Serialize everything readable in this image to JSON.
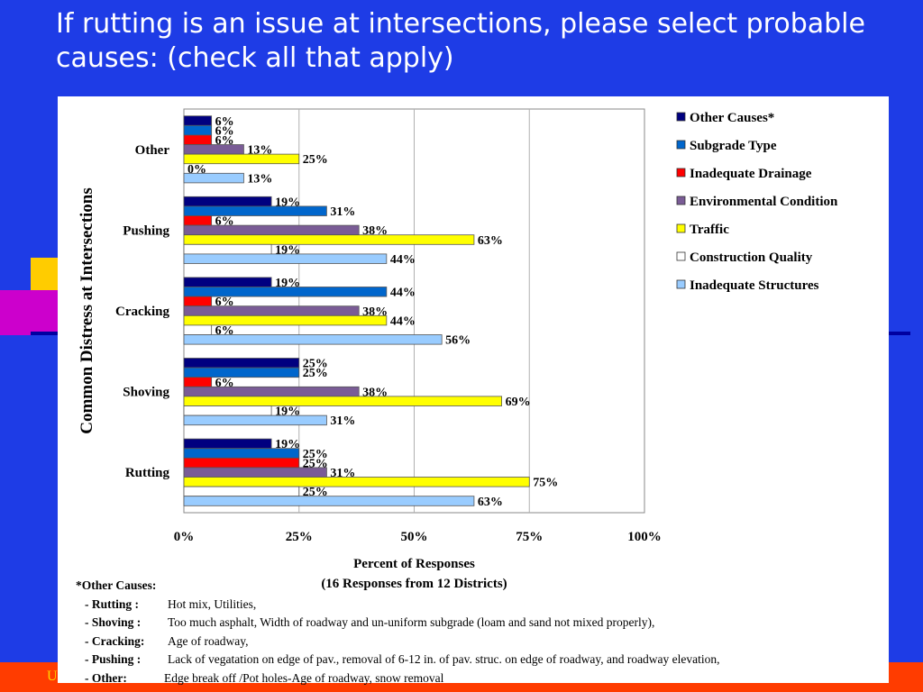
{
  "slide": {
    "title": "If rutting is an issue at intersections, please select probable causes: (check all that apply)",
    "footer": "U"
  },
  "colors": {
    "background": "#1e3ce6",
    "bottom_bar": "#ff3c00",
    "deco_yellow": "#ffcc00",
    "deco_magenta": "#cc00cc"
  },
  "chart_data": {
    "type": "bar",
    "orientation": "horizontal",
    "categories": [
      "Other",
      "Pushing",
      "Cracking",
      "Shoving",
      "Rutting"
    ],
    "series": [
      {
        "name": "Other Causes*",
        "color": "#000080",
        "values": [
          6,
          19,
          19,
          25,
          19
        ]
      },
      {
        "name": "Subgrade Type",
        "color": "#0066cc",
        "values": [
          6,
          31,
          44,
          25,
          25
        ]
      },
      {
        "name": "Inadequate Drainage",
        "color": "#ff0000",
        "values": [
          6,
          6,
          6,
          6,
          25
        ]
      },
      {
        "name": "Environmental Condition",
        "color": "#7a5c96",
        "values": [
          13,
          38,
          38,
          38,
          31
        ]
      },
      {
        "name": "Traffic",
        "color": "#ffff00",
        "values": [
          25,
          63,
          44,
          69,
          75
        ]
      },
      {
        "name": "Construction Quality",
        "color": "#ffffff",
        "values": [
          0,
          19,
          6,
          19,
          25
        ]
      },
      {
        "name": "Inadequate Structures",
        "color": "#99ccff",
        "values": [
          13,
          44,
          56,
          31,
          63
        ]
      }
    ],
    "xlim": [
      0,
      100
    ],
    "xticks": [
      "0%",
      "25%",
      "50%",
      "75%",
      "100%"
    ],
    "xticks_values": [
      0,
      25,
      50,
      75,
      100
    ],
    "ylabel": "Common Distress at Intersections",
    "xlabel": "Percent of Responses",
    "xlabel2": "(16 Responses from 12 Districts)",
    "value_suffix": "%",
    "grid": true,
    "legend": "right"
  },
  "notes": {
    "heading": "*Other Causes:",
    "items": [
      {
        "key": "- Rutting :",
        "text": "Hot mix, Utilities,"
      },
      {
        "key": "- Shoving :",
        "text": "Too much asphalt, Width of roadway and un-uniform subgrade (loam and sand not mixed properly),"
      },
      {
        "key": "- Cracking:",
        "text": "Age of roadway,"
      },
      {
        "key": "- Pushing :",
        "text": "Lack of vegatation on edge of pav., removal of 6-12 in. of pav. struc. on edge of roadway, and roadway elevation,"
      },
      {
        "key": "- Other:",
        "text": "Edge break off /Pot holes-Age of roadway, snow removal"
      }
    ]
  }
}
